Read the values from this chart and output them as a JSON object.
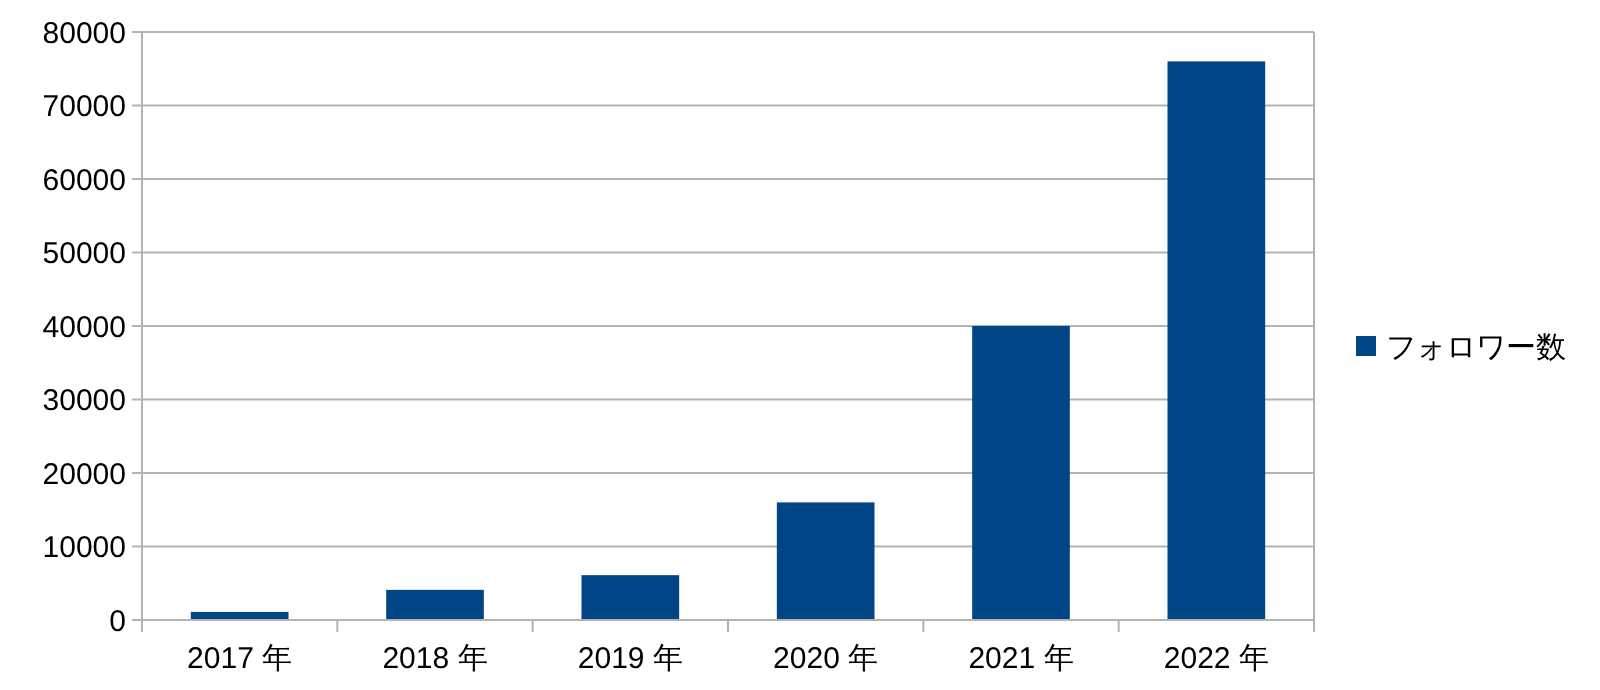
{
  "chart_data": {
    "type": "bar",
    "categories": [
      "2017 年",
      "2018 年",
      "2019 年",
      "2020 年",
      "2021 年",
      "2022 年"
    ],
    "series": [
      {
        "name": "フォロワー数",
        "color": "#004586",
        "values": [
          1100,
          4100,
          6100,
          16000,
          40000,
          76000
        ]
      }
    ],
    "ylim": [
      0,
      80000
    ],
    "yticks": [
      0,
      10000,
      20000,
      30000,
      40000,
      50000,
      60000,
      70000,
      80000
    ],
    "grid": "y",
    "legend": "right"
  }
}
